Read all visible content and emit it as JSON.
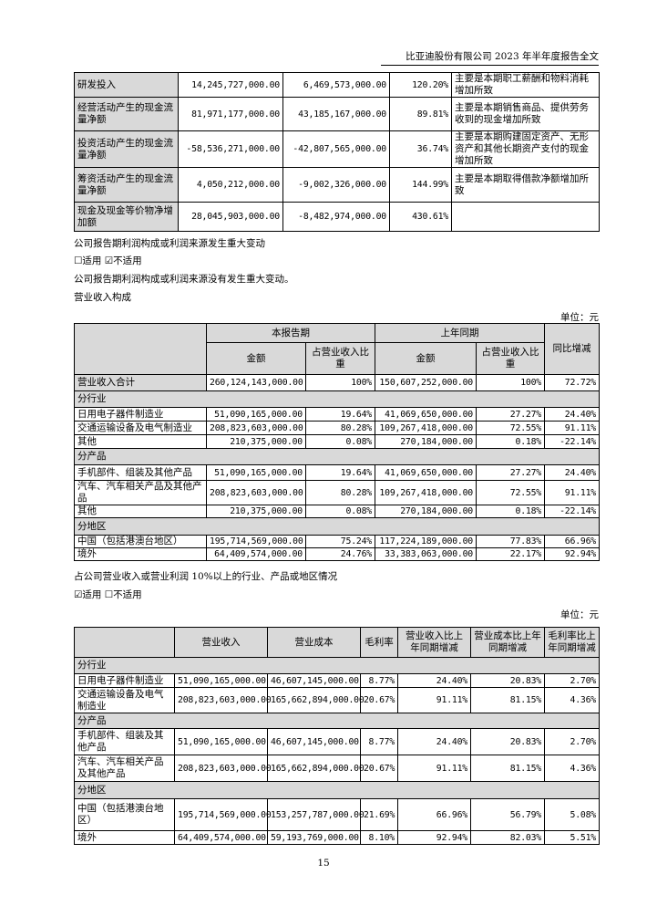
{
  "header": "比亚迪股份有限公司 2023 年半年度报告全文",
  "table1": {
    "rows": [
      [
        "研发投入",
        "14,245,727,000.00",
        "6,469,573,000.00",
        "120.20%",
        "主要是本期职工薪酬和物料消耗增加所致"
      ],
      [
        "经营活动产生的现金流量净额",
        "81,971,177,000.00",
        "43,185,167,000.00",
        "89.81%",
        "主要是本期销售商品、提供劳务收到的现金增加所致"
      ],
      [
        "投资活动产生的现金流量净额",
        "-58,536,271,000.00",
        "-42,807,565,000.00",
        "36.74%",
        "主要是本期购建固定资产、无形资产和其他长期资产支付的现金增加所致"
      ],
      [
        "筹资活动产生的现金流量净额",
        "4,050,212,000.00",
        "-9,002,326,000.00",
        "144.99%",
        "主要是本期取得借款净额增加所致"
      ],
      [
        "现金及现金等价物净增加额",
        "28,045,903,000.00",
        "-8,482,974,000.00",
        "430.61%",
        ""
      ]
    ]
  },
  "text": {
    "profit_change_title": "公司报告期利润构成或利润来源发生重大变动",
    "profit_change_options": "☐适用 ☑不适用",
    "profit_change_note": "公司报告期利润构成或利润来源没有发生重大变动。",
    "revenue_title": "营业收入构成",
    "unit": "单位：元",
    "over10_title": "占公司营业收入或营业利润 10%以上的行业、产品或地区情况",
    "over10_options": "☑适用 ☐不适用"
  },
  "table2": {
    "header": {
      "current_period": "本报告期",
      "prior_period": "上年同期",
      "amount": "金额",
      "share": "占营业收入比重",
      "yoy": "同比增减"
    },
    "rows": [
      {
        "type": "total",
        "cells": [
          "营业收入合计",
          "260,124,143,000.00",
          "100%",
          "150,607,252,000.00",
          "100%",
          "72.72%"
        ]
      },
      {
        "type": "section",
        "cells": [
          "分行业"
        ]
      },
      {
        "type": "row",
        "cells": [
          "日用电子器件制造业",
          "51,090,165,000.00",
          "19.64%",
          "41,069,650,000.00",
          "27.27%",
          "24.40%"
        ]
      },
      {
        "type": "row",
        "cells": [
          "交通运输设备及电气制造业",
          "208,823,603,000.00",
          "80.28%",
          "109,267,418,000.00",
          "72.55%",
          "91.11%"
        ]
      },
      {
        "type": "row",
        "cells": [
          "其他",
          "210,375,000.00",
          "0.08%",
          "270,184,000.00",
          "0.18%",
          "-22.14%"
        ]
      },
      {
        "type": "section",
        "cells": [
          "分产品"
        ]
      },
      {
        "type": "row",
        "cells": [
          "手机部件、组装及其他产品",
          "51,090,165,000.00",
          "19.64%",
          "41,069,650,000.00",
          "27.27%",
          "24.40%"
        ]
      },
      {
        "type": "row",
        "cells": [
          "汽车、汽车相关产品及其他产品",
          "208,823,603,000.00",
          "80.28%",
          "109,267,418,000.00",
          "72.55%",
          "91.11%"
        ]
      },
      {
        "type": "row",
        "cells": [
          "其他",
          "210,375,000.00",
          "0.08%",
          "270,184,000.00",
          "0.18%",
          "-22.14%"
        ]
      },
      {
        "type": "section",
        "cells": [
          "分地区"
        ]
      },
      {
        "type": "row",
        "cells": [
          "中国（包括港澳台地区）",
          "195,714,569,000.00",
          "75.24%",
          "117,224,189,000.00",
          "77.83%",
          "66.96%"
        ]
      },
      {
        "type": "row",
        "cells": [
          "境外",
          "64,409,574,000.00",
          "24.76%",
          "33,383,063,000.00",
          "22.17%",
          "92.94%"
        ]
      }
    ]
  },
  "table3": {
    "header": [
      "",
      "营业收入",
      "营业成本",
      "毛利率",
      "营业收入比上年同期增减",
      "营业成本比上年同期增减",
      "毛利率比上年同期增减"
    ],
    "rows": [
      {
        "type": "section",
        "cells": [
          "分行业"
        ]
      },
      {
        "type": "row",
        "cells": [
          "日用电子器件制造业",
          "51,090,165,000.00",
          "46,607,145,000.00",
          "8.77%",
          "24.40%",
          "20.83%",
          "2.70%"
        ]
      },
      {
        "type": "row",
        "cells": [
          "交通运输设备及电气制造业",
          "208,823,603,000.00",
          "165,662,894,000.00",
          "20.67%",
          "91.11%",
          "81.15%",
          "4.36%"
        ]
      },
      {
        "type": "section",
        "cells": [
          "分产品"
        ]
      },
      {
        "type": "row",
        "cells": [
          "手机部件、组装及其他产品",
          "51,090,165,000.00",
          "46,607,145,000.00",
          "8.77%",
          "24.40%",
          "20.83%",
          "2.70%"
        ]
      },
      {
        "type": "row",
        "cells": [
          "汽车、汽车相关产品及其他产品",
          "208,823,603,000.00",
          "165,662,894,000.00",
          "20.67%",
          "91.11%",
          "81.15%",
          "4.36%"
        ]
      },
      {
        "type": "section",
        "cells": [
          "分地区"
        ]
      },
      {
        "type": "row",
        "cells": [
          "中国（包括港澳台地区）",
          "195,714,569,000.00",
          "153,257,787,000.00",
          "21.69%",
          "66.96%",
          "56.79%",
          "5.08%"
        ]
      },
      {
        "type": "row",
        "cells": [
          "境外",
          "64,409,574,000.00",
          "59,193,769,000.00",
          "8.10%",
          "92.94%",
          "82.03%",
          "5.51%"
        ]
      }
    ]
  },
  "page_number": "15"
}
